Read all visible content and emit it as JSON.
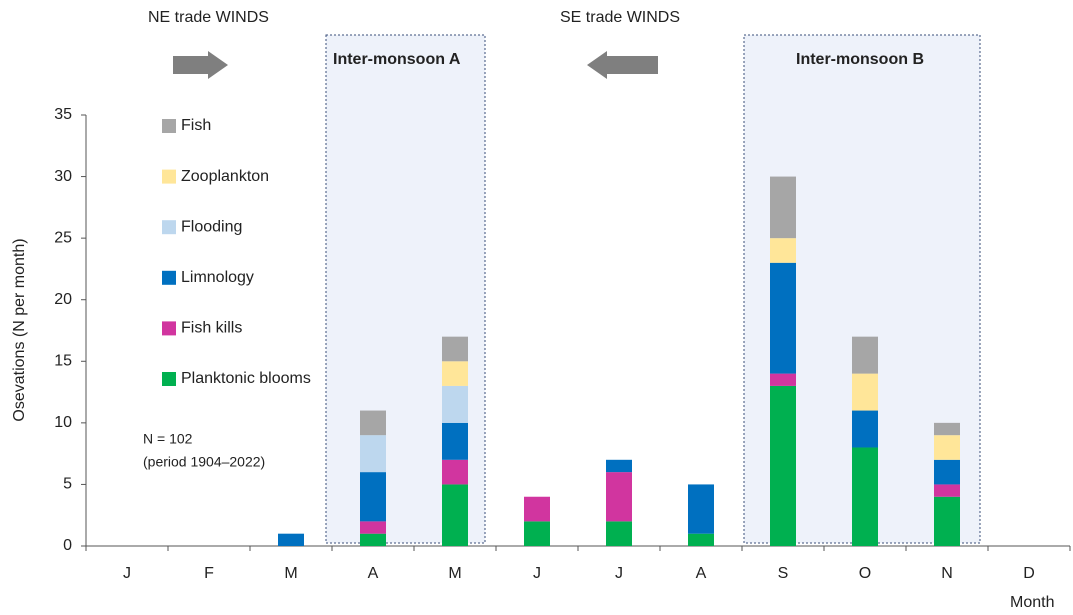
{
  "chart_data": {
    "type": "bar",
    "stacked": true,
    "y_label": "Osevations (N  per month)",
    "x_label": "Month",
    "annotations": [
      "NE trade WINDS",
      "SE  trade WINDS",
      "Inter-monsoon A",
      "Inter-monsoon B",
      "N = 102",
      "(period 1904–2022)"
    ],
    "categories": [
      "J",
      "F",
      "M",
      "A",
      "M",
      "J",
      "J",
      "A",
      "S",
      "O",
      "N",
      "D"
    ],
    "series": [
      {
        "name": "Planktonic blooms",
        "color": "#00b050",
        "values": [
          0,
          0,
          0,
          1,
          5,
          2,
          2,
          1,
          13,
          8,
          4,
          0
        ]
      },
      {
        "name": "Fish kills",
        "color": "#d1359f",
        "values": [
          0,
          0,
          0,
          1,
          2,
          2,
          4,
          0,
          1,
          0,
          1,
          0
        ]
      },
      {
        "name": "Limnology",
        "color": "#0070c0",
        "values": [
          0,
          0,
          1,
          4,
          3,
          0,
          1,
          4,
          9,
          3,
          2,
          0
        ]
      },
      {
        "name": "Flooding",
        "color": "#bdd7ee",
        "values": [
          0,
          0,
          0,
          3,
          3,
          0,
          0,
          0,
          0,
          0,
          0,
          0
        ]
      },
      {
        "name": "Zooplankton",
        "color": "#ffe699",
        "values": [
          0,
          0,
          0,
          0,
          2,
          0,
          0,
          0,
          2,
          3,
          2,
          0
        ]
      },
      {
        "name": "Fish",
        "color": "#a6a6a6",
        "values": [
          0,
          0,
          0,
          2,
          2,
          0,
          0,
          0,
          5,
          3,
          1,
          0
        ]
      }
    ],
    "ylim": [
      0,
      35
    ],
    "yticks": [
      0,
      5,
      10,
      15,
      20,
      25,
      30,
      35
    ],
    "grid": false
  }
}
